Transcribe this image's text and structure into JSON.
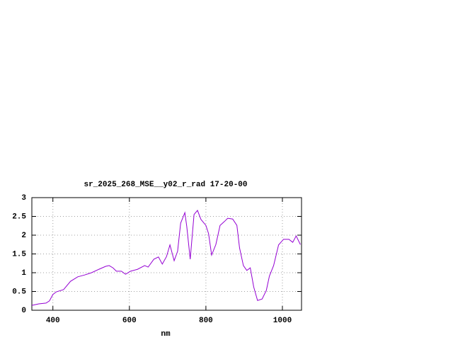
{
  "chart_data": {
    "type": "line",
    "title": "sr_2025_268_MSE__y02_r_rad 17-20-00",
    "x_label": "nm",
    "grid": true,
    "xlim": [
      345,
      1050
    ],
    "ylim": [
      0,
      3
    ],
    "xticks": [
      400,
      600,
      800,
      1000
    ],
    "yticks": [
      0,
      0.5,
      1,
      1.5,
      2,
      2.5,
      3
    ],
    "x": [
      345,
      363,
      382,
      391,
      400,
      409,
      428,
      446,
      465,
      483,
      501,
      520,
      538,
      547,
      557,
      566,
      579,
      590,
      603,
      621,
      640,
      649,
      664,
      676,
      686,
      697,
      706,
      717,
      726,
      734,
      745,
      750,
      759,
      769,
      778,
      787,
      800,
      807,
      815,
      826,
      837,
      848,
      857,
      870,
      881,
      888,
      898,
      907,
      916,
      925,
      935,
      947,
      958,
      966,
      977,
      990,
      1003,
      1017,
      1027,
      1036,
      1047
    ],
    "series": [
      {
        "color": "#9400d3",
        "values": [
          0.13,
          0.17,
          0.19,
          0.25,
          0.42,
          0.49,
          0.55,
          0.77,
          0.89,
          0.94,
          1.0,
          1.09,
          1.17,
          1.19,
          1.13,
          1.04,
          1.04,
          0.96,
          1.04,
          1.09,
          1.19,
          1.15,
          1.36,
          1.42,
          1.23,
          1.43,
          1.74,
          1.32,
          1.57,
          2.32,
          2.6,
          2.23,
          1.36,
          2.55,
          2.66,
          2.42,
          2.26,
          2.04,
          1.47,
          1.75,
          2.26,
          2.36,
          2.45,
          2.43,
          2.26,
          1.66,
          1.19,
          1.06,
          1.13,
          0.62,
          0.26,
          0.3,
          0.53,
          0.91,
          1.19,
          1.74,
          1.89,
          1.89,
          1.81,
          1.98,
          1.75
        ]
      }
    ]
  }
}
